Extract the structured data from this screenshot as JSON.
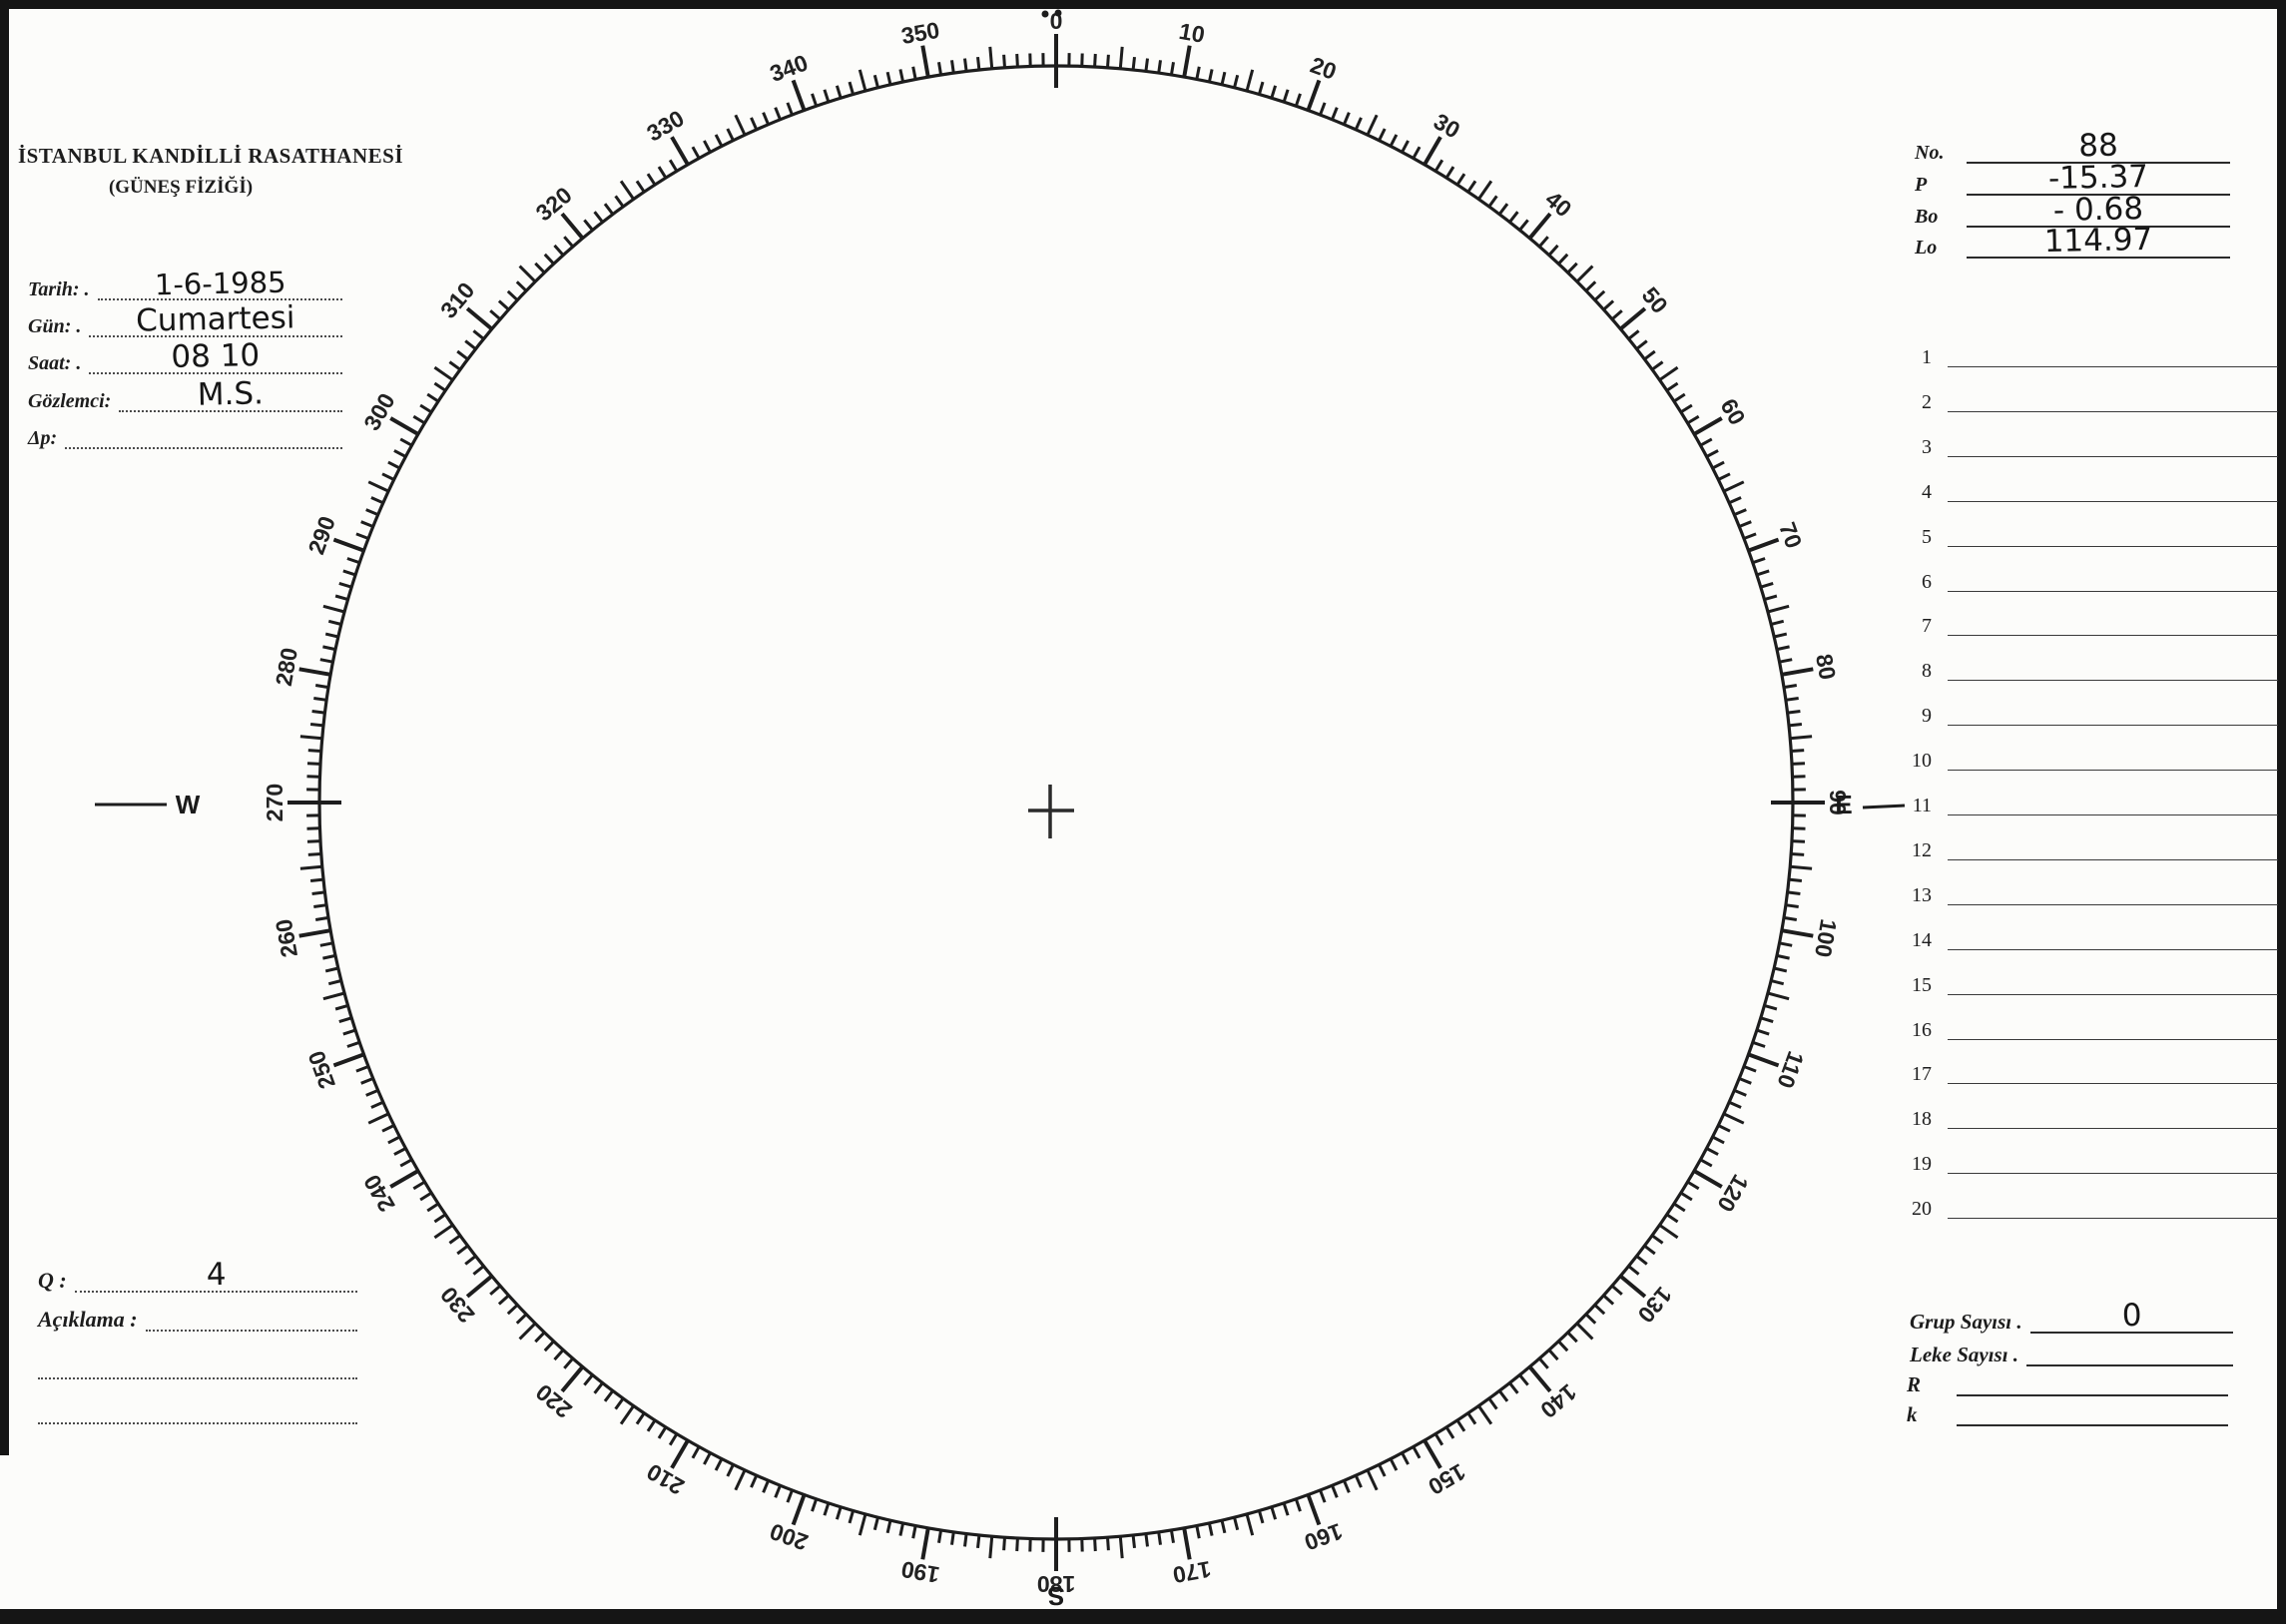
{
  "page": {
    "paper_color": "#fcfcfa",
    "ink_color": "#1d1d1d"
  },
  "header": {
    "line1": "İSTANBUL KANDİLLİ RASATHANESİ",
    "line2": "(GÜNEŞ FİZİĞİ)"
  },
  "left_fields": [
    {
      "id": "tarih",
      "label": "Tarih: .",
      "value": "1-6-1985"
    },
    {
      "id": "gun",
      "label": "Gün: .",
      "value": "Cumartesi"
    },
    {
      "id": "saat",
      "label": "Saat: .",
      "value": "08 10"
    },
    {
      "id": "gozlemci",
      "label": "Gözlemci:",
      "value": "M.S."
    },
    {
      "id": "delta-p",
      "label": "Δp:",
      "value": ""
    }
  ],
  "ephemeris_fields": [
    {
      "id": "no",
      "label": "No.",
      "value": "88"
    },
    {
      "id": "p",
      "label": "P",
      "value": "-15.37"
    },
    {
      "id": "bo",
      "label": "Bo",
      "value": "- 0.68"
    },
    {
      "id": "lo",
      "label": "Lo",
      "value": "114.97"
    }
  ],
  "observation_list": {
    "row_numbers": [
      "1",
      "2",
      "3",
      "4",
      "5",
      "6",
      "7",
      "8",
      "9",
      "10",
      "11",
      "12",
      "13",
      "14",
      "15",
      "16",
      "17",
      "18",
      "19",
      "20"
    ]
  },
  "bottom_left": {
    "q": {
      "label": "Q :",
      "value": "4"
    },
    "aciklama": {
      "label": "Açıklama :",
      "value": ""
    }
  },
  "summary_fields": [
    {
      "id": "grup-sayisi",
      "label": "Grup Sayısı .",
      "value": "0"
    },
    {
      "id": "leke-sayisi",
      "label": "Leke Sayısı .",
      "value": ""
    },
    {
      "id": "r",
      "label": "R",
      "value": ""
    },
    {
      "id": "k",
      "label": "k",
      "value": ""
    }
  ],
  "dial": {
    "degree_labels": [
      "0",
      "10",
      "20",
      "30",
      "40",
      "50",
      "60",
      "70",
      "80",
      "90",
      "100",
      "110",
      "120",
      "130",
      "140",
      "150",
      "160",
      "170",
      "180",
      "190",
      "200",
      "210",
      "220",
      "230",
      "240",
      "250",
      "260",
      "270",
      "280",
      "290",
      "300",
      "310",
      "320",
      "330",
      "340",
      "350"
    ],
    "compass": {
      "west": "W",
      "east": "E",
      "south": "S"
    }
  }
}
